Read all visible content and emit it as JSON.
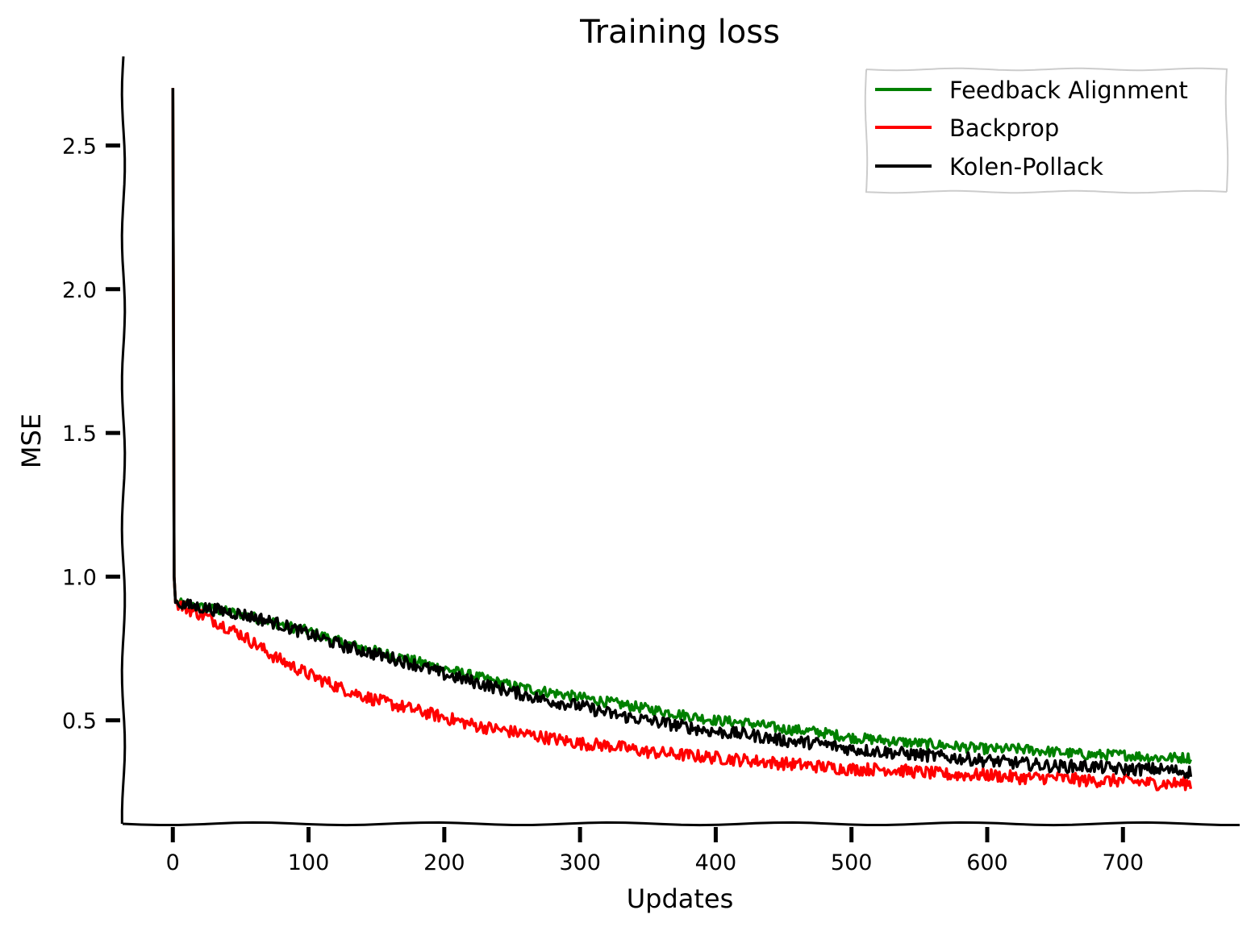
{
  "chart_data": {
    "type": "line",
    "title": "Training loss",
    "xlabel": "Updates",
    "ylabel": "MSE",
    "xlim": [
      -37,
      786
    ],
    "ylim": [
      0.14,
      2.81
    ],
    "xticks": [
      0,
      100,
      200,
      300,
      400,
      500,
      600,
      700
    ],
    "xtick_labels": [
      "0",
      "100",
      "200",
      "300",
      "400",
      "500",
      "600",
      "700"
    ],
    "yticks": [
      0.5,
      1.0,
      1.5,
      2.0,
      2.5
    ],
    "ytick_labels": [
      "0.5",
      "1.0",
      "1.5",
      "2.0",
      "2.5"
    ],
    "legend_position": "top-right",
    "grid": false,
    "series": [
      {
        "name": "Feedback Alignment",
        "color": "#008000",
        "x": [
          0,
          1,
          2,
          10,
          25,
          50,
          75,
          100,
          125,
          150,
          175,
          200,
          225,
          250,
          275,
          300,
          325,
          350,
          375,
          400,
          425,
          450,
          475,
          500,
          525,
          550,
          575,
          600,
          625,
          650,
          675,
          700,
          725,
          750
        ],
        "y": [
          2.7,
          1.0,
          0.91,
          0.9,
          0.89,
          0.87,
          0.84,
          0.81,
          0.77,
          0.74,
          0.71,
          0.68,
          0.65,
          0.62,
          0.6,
          0.58,
          0.56,
          0.54,
          0.52,
          0.5,
          0.49,
          0.47,
          0.46,
          0.44,
          0.43,
          0.42,
          0.41,
          0.4,
          0.4,
          0.39,
          0.38,
          0.38,
          0.37,
          0.37
        ],
        "noise": 0.018
      },
      {
        "name": "Backprop",
        "color": "#ff0000",
        "x": [
          0,
          1,
          2,
          10,
          25,
          50,
          75,
          100,
          125,
          150,
          175,
          200,
          225,
          250,
          275,
          300,
          325,
          350,
          375,
          400,
          425,
          450,
          475,
          500,
          525,
          550,
          575,
          600,
          625,
          650,
          675,
          700,
          725,
          750
        ],
        "y": [
          2.7,
          1.0,
          0.91,
          0.89,
          0.86,
          0.8,
          0.72,
          0.66,
          0.61,
          0.57,
          0.54,
          0.51,
          0.48,
          0.46,
          0.44,
          0.42,
          0.41,
          0.39,
          0.38,
          0.37,
          0.36,
          0.35,
          0.34,
          0.33,
          0.33,
          0.32,
          0.31,
          0.31,
          0.3,
          0.3,
          0.29,
          0.29,
          0.28,
          0.28
        ],
        "noise": 0.022
      },
      {
        "name": "Kolen-Pollack",
        "color": "#000000",
        "x": [
          0,
          1,
          2,
          10,
          25,
          50,
          75,
          100,
          125,
          150,
          175,
          200,
          225,
          250,
          275,
          300,
          325,
          350,
          375,
          400,
          425,
          450,
          475,
          500,
          525,
          550,
          575,
          600,
          625,
          650,
          675,
          700,
          725,
          750
        ],
        "y": [
          2.7,
          1.0,
          0.91,
          0.9,
          0.89,
          0.87,
          0.84,
          0.8,
          0.76,
          0.73,
          0.7,
          0.66,
          0.63,
          0.6,
          0.57,
          0.55,
          0.52,
          0.5,
          0.48,
          0.46,
          0.45,
          0.43,
          0.42,
          0.4,
          0.39,
          0.38,
          0.37,
          0.36,
          0.35,
          0.34,
          0.34,
          0.33,
          0.33,
          0.32
        ],
        "noise": 0.022
      }
    ]
  }
}
